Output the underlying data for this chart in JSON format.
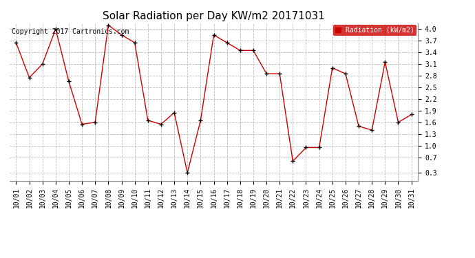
{
  "title": "Solar Radiation per Day KW/m2 20171031",
  "copyright_text": "Copyright 2017 Cartronics.com",
  "ylabel": "Radiation (kW/m2)",
  "dates": [
    "10/01",
    "10/02",
    "10/03",
    "10/04",
    "10/05",
    "10/06",
    "10/07",
    "10/08",
    "10/09",
    "10/10",
    "10/11",
    "10/12",
    "10/13",
    "10/14",
    "10/15",
    "10/16",
    "10/17",
    "10/18",
    "10/19",
    "10/20",
    "10/21",
    "10/22",
    "10/23",
    "10/24",
    "10/25",
    "10/26",
    "10/27",
    "10/28",
    "10/29",
    "10/30",
    "10/31"
  ],
  "values": [
    3.65,
    2.75,
    3.1,
    4.0,
    2.65,
    1.55,
    1.6,
    4.1,
    3.85,
    3.65,
    1.65,
    1.55,
    1.85,
    0.3,
    1.65,
    3.85,
    3.65,
    3.45,
    3.45,
    2.85,
    2.85,
    0.6,
    0.95,
    0.95,
    3.0,
    2.85,
    1.5,
    1.4,
    3.15,
    1.6,
    1.8
  ],
  "yticks": [
    0.3,
    0.7,
    1.0,
    1.3,
    1.6,
    1.9,
    2.2,
    2.5,
    2.8,
    3.1,
    3.4,
    3.7,
    4.0
  ],
  "ylim": [
    0.1,
    4.15
  ],
  "line_color": "#cc0000",
  "marker_color": "#000000",
  "bg_color": "#ffffff",
  "grid_color": "#bbbbbb",
  "title_fontsize": 11,
  "tick_fontsize": 7,
  "copyright_fontsize": 7,
  "legend_bg": "#cc0000",
  "legend_text_color": "#ffffff",
  "legend_fontsize": 7
}
